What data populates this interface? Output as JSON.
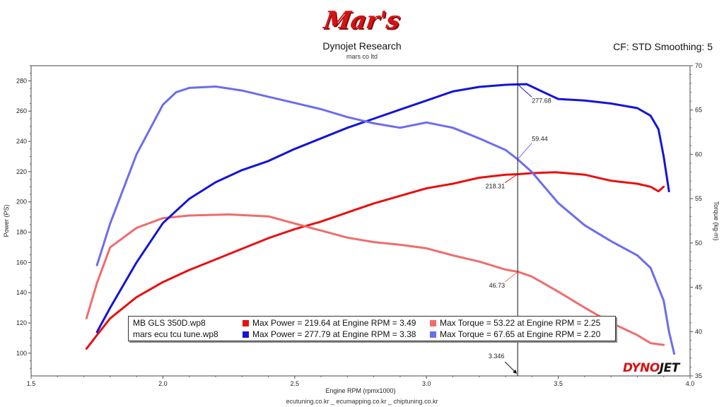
{
  "header": {
    "logo_text": "Mar's",
    "title": "Dynojet Research",
    "subtitle": "mars co ltd",
    "cf": "CF: STD Smoothing: 5"
  },
  "footer": {
    "text": "ecutuning.co.kr _ ecumapping.co.kr _ chiptuning.co.kr"
  },
  "brand": {
    "dyno": "DYNO",
    "jet": "JET"
  },
  "legend": {
    "rows": [
      {
        "file": "MB GLS 350D.wp8",
        "power_text": "Max Power = 219.64 at Engine RPM = 3.49",
        "torque_text": "Max Torque = 53.22 at Engine RPM = 2.25",
        "power_color": "#e81010",
        "torque_color": "#f06c6c"
      },
      {
        "file": "mars ecu tcu tune.wp8",
        "power_text": "Max Power = 277.79 at Engine RPM = 3.38",
        "torque_text": "Max Torque = 67.65 at Engine RPM = 2.20",
        "power_color": "#1414d8",
        "torque_color": "#6c6cf0"
      }
    ]
  },
  "chart_data": {
    "type": "line",
    "xlabel": "Engine RPM (rpmx1000)",
    "ylabel": "Power (PS)",
    "y2label": "Torque (kg-m)",
    "xlim": [
      1.5,
      4.0
    ],
    "ylim": [
      85,
      290
    ],
    "y2lim": [
      35,
      70
    ],
    "x_ticks": [
      "1.5",
      "2.0",
      "2.5",
      "3.0",
      "3.5",
      "4.0"
    ],
    "y_ticks": [
      "100",
      "120",
      "140",
      "160",
      "180",
      "200",
      "220",
      "240",
      "260",
      "280"
    ],
    "y2_ticks": [
      "35",
      "40",
      "45",
      "50",
      "55",
      "60",
      "65",
      "70"
    ],
    "cursor": {
      "x": 3.346,
      "label": "3.346"
    },
    "annotations": [
      {
        "text": "277.68",
        "series": "Mod Power",
        "x": 3.346,
        "value": 277.68
      },
      {
        "text": "59.44",
        "series": "Mod Torque",
        "x": 3.346,
        "value": 59.44
      },
      {
        "text": "218.31",
        "series": "Stock Power",
        "x": 3.346,
        "value": 218.31
      },
      {
        "text": "46.73",
        "series": "Stock Torque",
        "x": 3.346,
        "value": 46.73
      }
    ],
    "series": [
      {
        "name": "MB GLS 350D.wp8 Power",
        "axis": "left",
        "color": "#e81010",
        "x": [
          1.71,
          1.75,
          1.8,
          1.9,
          2.0,
          2.1,
          2.2,
          2.3,
          2.4,
          2.5,
          2.6,
          2.7,
          2.8,
          2.9,
          3.0,
          3.1,
          3.2,
          3.3,
          3.35,
          3.4,
          3.49,
          3.6,
          3.7,
          3.8,
          3.85,
          3.88,
          3.9
        ],
        "values": [
          103,
          112,
          123,
          137,
          147,
          155,
          162,
          169,
          176,
          182,
          187,
          193,
          199,
          204,
          209,
          212,
          216,
          218,
          218.3,
          219,
          219.6,
          218,
          214,
          212,
          210,
          207,
          210
        ]
      },
      {
        "name": "MB GLS 350D.wp8 Torque",
        "axis": "right",
        "color": "#f06c6c",
        "x": [
          1.71,
          1.75,
          1.8,
          1.9,
          2.0,
          2.1,
          2.25,
          2.4,
          2.5,
          2.6,
          2.7,
          2.8,
          2.9,
          3.0,
          3.1,
          3.2,
          3.3,
          3.35,
          3.4,
          3.5,
          3.6,
          3.7,
          3.8,
          3.85,
          3.9
        ],
        "values": [
          41.5,
          45.5,
          49.5,
          51.7,
          52.8,
          53.1,
          53.22,
          53.0,
          52.2,
          51.4,
          50.6,
          50.1,
          49.8,
          49.4,
          48.6,
          47.9,
          47.0,
          46.73,
          46.2,
          44.5,
          42.7,
          41.0,
          39.6,
          38.7,
          38.5
        ]
      },
      {
        "name": "mars ecu tcu tune.wp8 Power",
        "axis": "left",
        "color": "#1414d8",
        "x": [
          1.75,
          1.8,
          1.9,
          2.0,
          2.1,
          2.2,
          2.3,
          2.4,
          2.5,
          2.6,
          2.7,
          2.8,
          2.9,
          3.0,
          3.1,
          3.2,
          3.3,
          3.346,
          3.38,
          3.45,
          3.5,
          3.6,
          3.7,
          3.8,
          3.85,
          3.88,
          3.9,
          3.92
        ],
        "values": [
          114,
          130,
          160,
          186,
          202,
          213,
          221,
          227,
          235,
          242,
          249,
          255,
          261,
          267,
          273,
          276,
          277.4,
          277.68,
          277.79,
          272,
          268,
          267,
          265,
          262,
          257,
          248,
          230,
          207
        ]
      },
      {
        "name": "mars ecu tcu tune.wp8 Torque",
        "axis": "right",
        "color": "#6c6cf0",
        "x": [
          1.75,
          1.8,
          1.9,
          2.0,
          2.05,
          2.1,
          2.2,
          2.3,
          2.4,
          2.5,
          2.6,
          2.7,
          2.8,
          2.9,
          3.0,
          3.1,
          3.2,
          3.3,
          3.346,
          3.4,
          3.5,
          3.6,
          3.7,
          3.8,
          3.85,
          3.9,
          3.92,
          3.94
        ],
        "values": [
          47.5,
          52.2,
          60.0,
          65.6,
          67.0,
          67.5,
          67.65,
          67.2,
          66.5,
          65.8,
          65.1,
          64.2,
          63.5,
          63.0,
          63.6,
          63.0,
          61.8,
          60.5,
          59.44,
          58.0,
          54.5,
          52.0,
          50.2,
          48.6,
          47.2,
          43.5,
          40.0,
          37.5
        ]
      }
    ]
  }
}
